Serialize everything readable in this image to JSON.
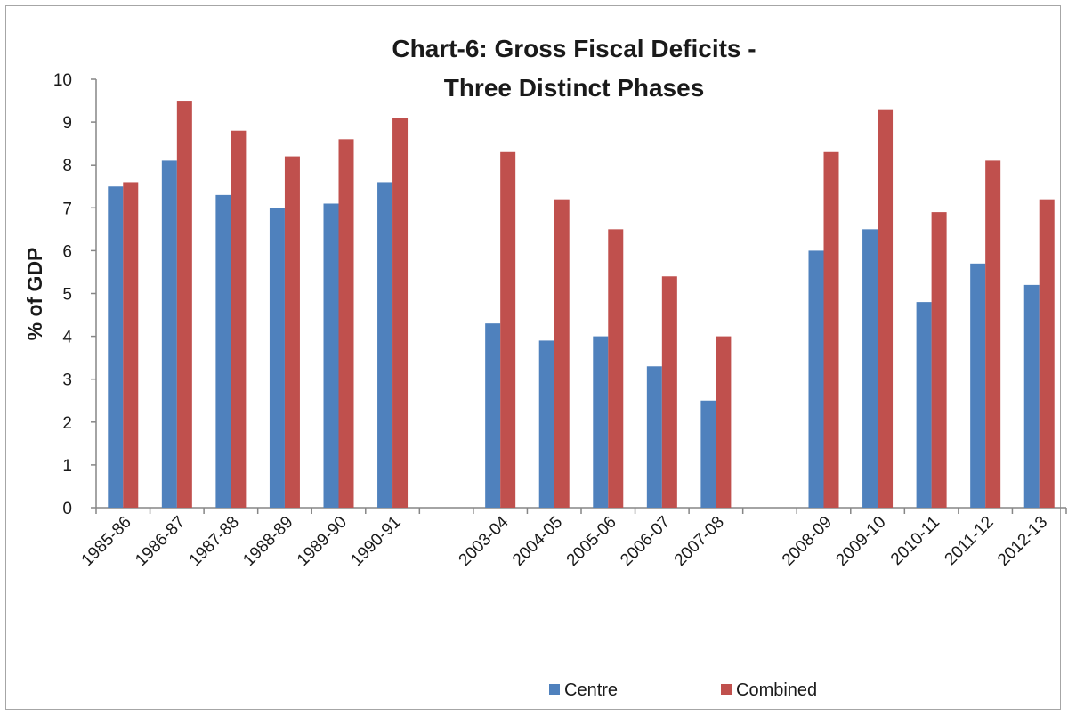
{
  "chart_data": {
    "type": "bar",
    "title": [
      "Chart-6: Gross Fiscal Deficits -",
      "Three Distinct Phases"
    ],
    "xlabel": "",
    "ylabel": "% of GDP",
    "ylim": [
      0,
      10
    ],
    "yticks": [
      0,
      1,
      2,
      3,
      4,
      5,
      6,
      7,
      8,
      9,
      10
    ],
    "grid": false,
    "legend_position": "bottom",
    "categories": [
      "1985-86",
      "1986-87",
      "1987-88",
      "1988-89",
      "1989-90",
      "1990-91",
      "",
      "2003-04",
      "2004-05",
      "2005-06",
      "2006-07",
      "2007-08",
      "",
      "2008-09",
      "2009-10",
      "2010-11",
      "2011-12",
      "2012-13"
    ],
    "series": [
      {
        "name": "Centre",
        "color": "#4f81bd",
        "values": [
          7.5,
          8.1,
          7.3,
          7.0,
          7.1,
          7.6,
          null,
          4.3,
          3.9,
          4.0,
          3.3,
          2.5,
          null,
          6.0,
          6.5,
          4.8,
          5.7,
          5.2
        ]
      },
      {
        "name": "Combined",
        "color": "#c0504d",
        "values": [
          7.6,
          9.5,
          8.8,
          8.2,
          8.6,
          9.1,
          null,
          8.3,
          7.2,
          6.5,
          5.4,
          4.0,
          null,
          8.3,
          9.3,
          6.9,
          8.1,
          7.2
        ]
      }
    ]
  }
}
